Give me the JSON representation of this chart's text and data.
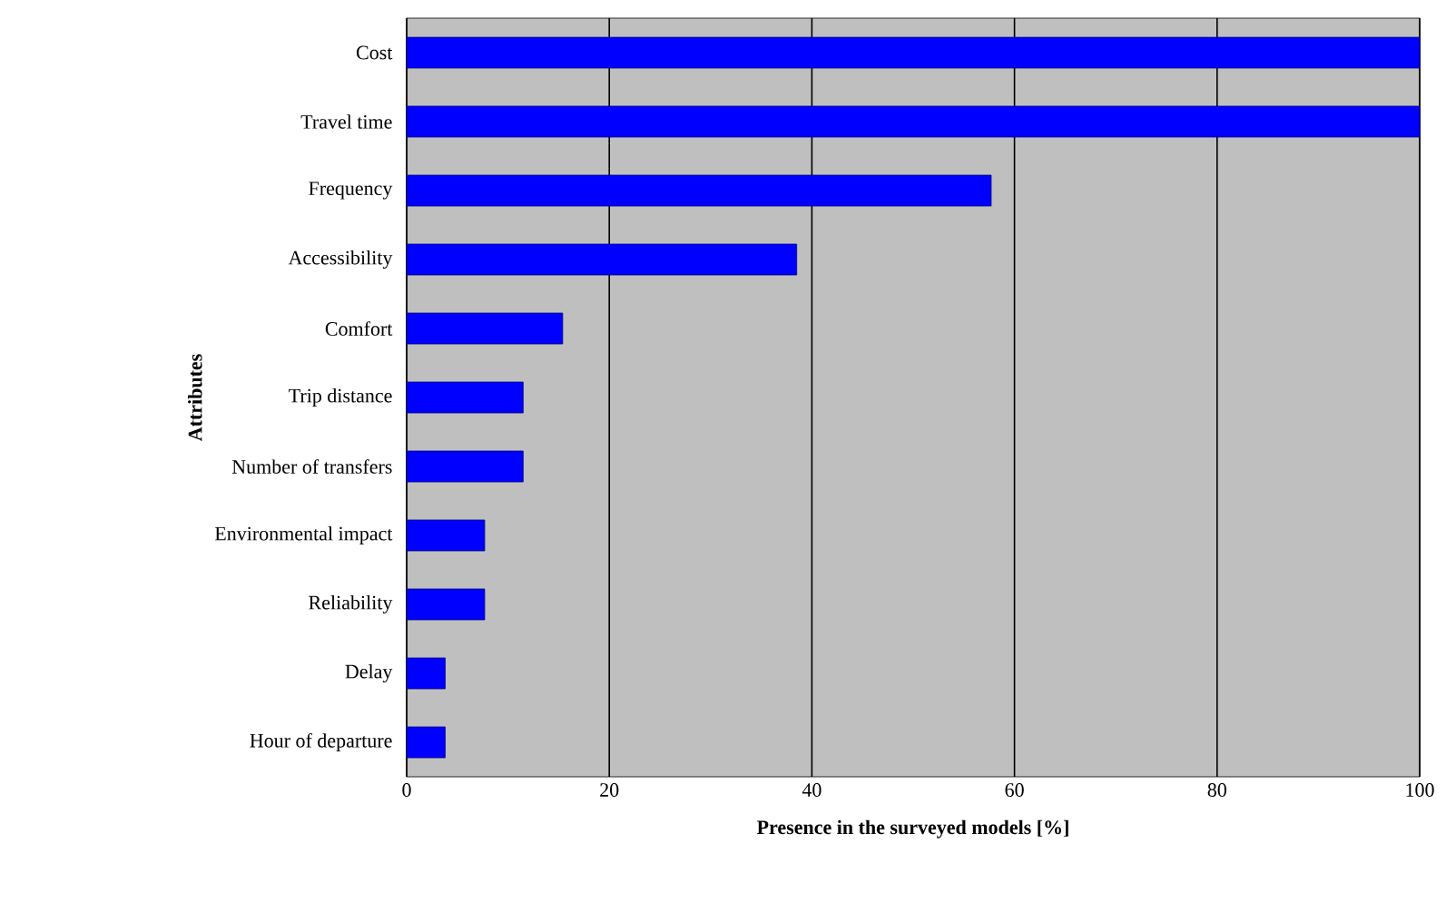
{
  "chart_data": {
    "type": "bar",
    "orientation": "horizontal",
    "xlabel": "Presence in the surveyed models [%]",
    "ylabel": "Attributes",
    "categories": [
      "Cost",
      "Travel time",
      "Frequency",
      "Accessibility",
      "Comfort",
      "Trip distance",
      "Number of transfers",
      "Environmental impact",
      "Reliability",
      "Delay",
      "Hour of departure"
    ],
    "values": [
      100,
      100,
      57.7,
      38.5,
      15.4,
      11.5,
      11.5,
      7.7,
      7.7,
      3.8,
      3.8
    ],
    "color": "#0000ff",
    "xlim": [
      0,
      100
    ],
    "xticks": [
      0,
      20,
      40,
      60,
      80,
      100
    ],
    "grid": "x"
  }
}
